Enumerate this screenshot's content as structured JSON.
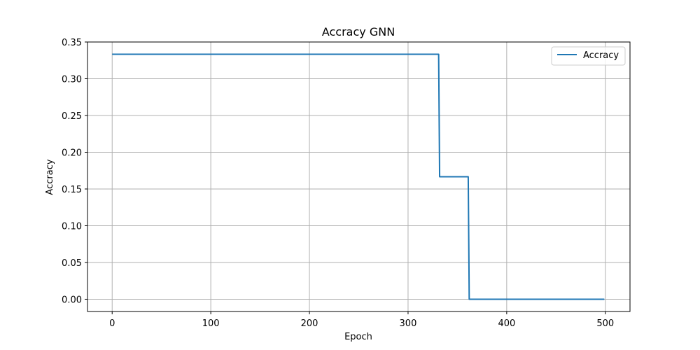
{
  "chart_data": {
    "type": "line",
    "title": "Accracy GNN",
    "xlabel": "Epoch",
    "ylabel": "Accracy",
    "xlim": [
      -25,
      525
    ],
    "ylim": [
      -0.0167,
      0.35
    ],
    "x_ticks": [
      0,
      100,
      200,
      300,
      400,
      500
    ],
    "x_tick_labels": [
      "0",
      "100",
      "200",
      "300",
      "400",
      "500"
    ],
    "y_ticks": [
      0.0,
      0.05,
      0.1,
      0.15,
      0.2,
      0.25,
      0.3,
      0.35
    ],
    "y_tick_labels": [
      "0.00",
      "0.05",
      "0.10",
      "0.15",
      "0.20",
      "0.25",
      "0.30",
      "0.35"
    ],
    "grid": true,
    "legend_position": "top-right",
    "series": [
      {
        "name": "Accracy",
        "color": "#1f77b4",
        "x": [
          0,
          331,
          332,
          361,
          362,
          499
        ],
        "y": [
          0.3333,
          0.3333,
          0.1667,
          0.1667,
          0.0,
          0.0
        ]
      }
    ]
  }
}
